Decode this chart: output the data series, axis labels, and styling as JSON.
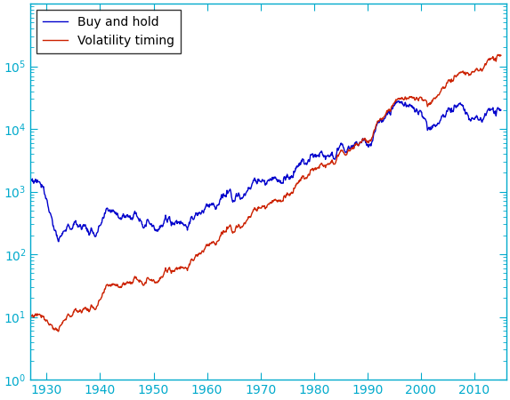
{
  "blue_color": "#0000CC",
  "red_color": "#CC2200",
  "xlim": [
    1927,
    2016
  ],
  "ylim_min": 0.1,
  "ylim_max": 100000,
  "xticks": [
    1930,
    1940,
    1950,
    1960,
    1970,
    1980,
    1990,
    2000,
    2010
  ],
  "legend_labels": [
    "Buy and hold",
    "Volatility timing"
  ],
  "legend_loc": "upper left",
  "background_color": "#ffffff",
  "line_width": 1.0,
  "tick_color": "#00AACC",
  "label_color": "#00AACC"
}
